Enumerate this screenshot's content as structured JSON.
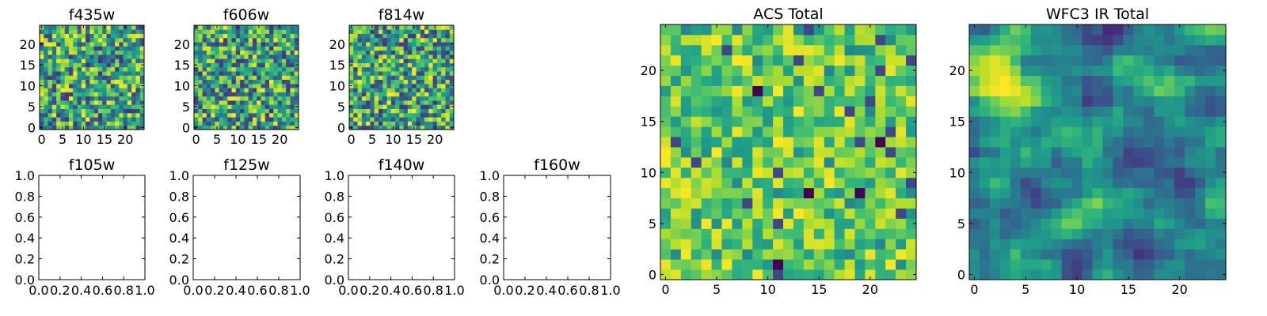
{
  "figure": {
    "background": "#ffffff"
  },
  "colormap": {
    "name": "viridis",
    "stops": [
      "#440154",
      "#482878",
      "#3e4989",
      "#31688e",
      "#26828e",
      "#1f9e89",
      "#35b779",
      "#6ece58",
      "#b5de2b",
      "#fde725"
    ]
  },
  "chart_data": [
    {
      "type": "heatmap",
      "title": "f435w",
      "grid": false,
      "size": 25,
      "xticks": [
        0,
        5,
        10,
        15,
        20
      ],
      "yticks": [
        0,
        5,
        10,
        15,
        20
      ],
      "value_range": [
        0,
        1
      ],
      "distribution": "uniform-noise",
      "seed": 11
    },
    {
      "type": "heatmap",
      "title": "f606w",
      "grid": false,
      "size": 25,
      "xticks": [
        0,
        5,
        10,
        15,
        20
      ],
      "yticks": [
        0,
        5,
        10,
        15,
        20
      ],
      "value_range": [
        0,
        1
      ],
      "distribution": "uniform-noise",
      "seed": 23
    },
    {
      "type": "heatmap",
      "title": "f814w",
      "grid": false,
      "size": 25,
      "xticks": [
        0,
        5,
        10,
        15,
        20
      ],
      "yticks": [
        0,
        5,
        10,
        15,
        20
      ],
      "value_range": [
        0,
        1
      ],
      "distribution": "uniform-noise",
      "seed": 37
    },
    {
      "type": "empty",
      "title": "f105w",
      "xlim": [
        0,
        1
      ],
      "ylim": [
        0,
        1
      ],
      "xticks": [
        "0.0",
        "0.2",
        "0.4",
        "0.6",
        "0.8",
        "1.0"
      ],
      "yticks": [
        "0.0",
        "0.2",
        "0.4",
        "0.6",
        "0.8",
        "1.0"
      ]
    },
    {
      "type": "empty",
      "title": "f125w",
      "xlim": [
        0,
        1
      ],
      "ylim": [
        0,
        1
      ],
      "xticks": [
        "0.0",
        "0.2",
        "0.4",
        "0.6",
        "0.8",
        "1.0"
      ],
      "yticks": [
        "0.0",
        "0.2",
        "0.4",
        "0.6",
        "0.8",
        "1.0"
      ]
    },
    {
      "type": "empty",
      "title": "f140w",
      "xlim": [
        0,
        1
      ],
      "ylim": [
        0,
        1
      ],
      "xticks": [
        "0.0",
        "0.2",
        "0.4",
        "0.6",
        "0.8",
        "1.0"
      ],
      "yticks": [
        "0.0",
        "0.2",
        "0.4",
        "0.6",
        "0.8",
        "1.0"
      ]
    },
    {
      "type": "empty",
      "title": "f160w",
      "xlim": [
        0,
        1
      ],
      "ylim": [
        0,
        1
      ],
      "xticks": [
        "0.0",
        "0.2",
        "0.4",
        "0.6",
        "0.8",
        "1.0"
      ],
      "yticks": [
        "0.0",
        "0.2",
        "0.4",
        "0.6",
        "0.8",
        "1.0"
      ]
    },
    {
      "type": "heatmap",
      "title": "ACS Total",
      "grid": false,
      "size": 25,
      "xticks": [
        0,
        5,
        10,
        15,
        20
      ],
      "yticks": [
        0,
        5,
        10,
        15,
        20
      ],
      "value_range": [
        0,
        1
      ],
      "distribution": "mostly-high-noise",
      "seed": 53
    },
    {
      "type": "heatmap",
      "title": "WFC3 IR Total",
      "grid": false,
      "size": 25,
      "xticks": [
        0,
        5,
        10,
        15,
        20
      ],
      "yticks": [
        0,
        5,
        10,
        15,
        20
      ],
      "value_range": [
        0,
        1
      ],
      "distribution": "smooth-with-bright-upper-left",
      "seed": 71
    }
  ]
}
